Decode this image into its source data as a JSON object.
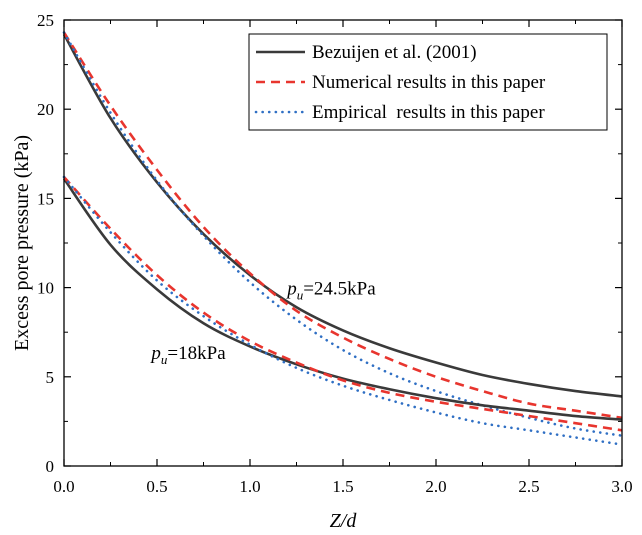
{
  "chart_data": {
    "type": "line",
    "title": "",
    "xlabel": "Z/d",
    "ylabel": "Excess pore pressure (kPa)",
    "xlim": [
      0,
      3
    ],
    "ylim": [
      0,
      25
    ],
    "xticks": [
      "0.0",
      "0.5",
      "1.0",
      "1.5",
      "2.0",
      "2.5",
      "3.0"
    ],
    "yticks": [
      "0",
      "5",
      "10",
      "15",
      "20",
      "25"
    ],
    "legend": [
      {
        "name": "Bezuijen et al. (2001)",
        "style": "solid",
        "color": "#3a3a3a"
      },
      {
        "name": "Numerical results in this paper",
        "style": "dashed",
        "color": "#e8352e"
      },
      {
        "name": "Empirical  results in this paper",
        "style": "dotted",
        "color": "#2f6fc4"
      }
    ],
    "annotations": [
      {
        "prefix": "p",
        "sub": "u",
        "text": "=24.5kPa",
        "x": 1.2,
        "y": 9.6
      },
      {
        "prefix": "p",
        "sub": "u",
        "text": "=18kPa",
        "x": 0.47,
        "y": 6.0
      }
    ],
    "series": [
      {
        "name": "Bezuijen et al. (2001)",
        "group": "pu=24.5kPa",
        "style": "solid",
        "color": "#3a3a3a",
        "x": [
          0,
          0.25,
          0.5,
          0.75,
          1.0,
          1.25,
          1.5,
          1.75,
          2.0,
          2.25,
          2.5,
          2.75,
          3.0
        ],
        "y": [
          24.2,
          19.5,
          15.9,
          13.0,
          10.7,
          8.9,
          7.6,
          6.6,
          5.8,
          5.1,
          4.6,
          4.2,
          3.9
        ]
      },
      {
        "name": "Numerical results in this paper",
        "group": "pu=24.5kPa",
        "style": "dashed",
        "color": "#e8352e",
        "x": [
          0,
          0.25,
          0.5,
          0.75,
          1.0,
          1.25,
          1.5,
          1.75,
          2.0,
          2.25,
          2.5,
          2.75,
          3.0
        ],
        "y": [
          24.3,
          20.2,
          16.6,
          13.4,
          10.8,
          8.7,
          7.2,
          6.0,
          5.0,
          4.2,
          3.5,
          3.1,
          2.7
        ]
      },
      {
        "name": "Empirical  results in this paper",
        "group": "pu=24.5kPa",
        "style": "dotted",
        "color": "#2f6fc4",
        "x": [
          0,
          0.25,
          0.5,
          0.75,
          1.0,
          1.25,
          1.5,
          1.75,
          2.0,
          2.25,
          2.5,
          2.75,
          3.0
        ],
        "y": [
          24.3,
          19.8,
          16.0,
          12.9,
          10.3,
          8.2,
          6.5,
          5.2,
          4.2,
          3.4,
          2.7,
          2.1,
          1.7
        ]
      },
      {
        "name": "Bezuijen et al. (2001)",
        "group": "pu=18kPa",
        "style": "solid",
        "color": "#3a3a3a",
        "x": [
          0,
          0.25,
          0.5,
          0.75,
          1.0,
          1.25,
          1.5,
          1.75,
          2.0,
          2.25,
          2.5,
          2.75,
          3.0
        ],
        "y": [
          16.1,
          12.4,
          9.9,
          8.0,
          6.7,
          5.7,
          4.9,
          4.3,
          3.8,
          3.4,
          3.1,
          2.8,
          2.6
        ]
      },
      {
        "name": "Numerical results in this paper",
        "group": "pu=18kPa",
        "style": "dashed",
        "color": "#e8352e",
        "x": [
          0,
          0.25,
          0.5,
          0.75,
          1.0,
          1.25,
          1.5,
          1.75,
          2.0,
          2.25,
          2.5,
          2.75,
          3.0
        ],
        "y": [
          16.2,
          13.3,
          10.7,
          8.6,
          7.0,
          5.8,
          4.8,
          4.1,
          3.6,
          3.2,
          2.8,
          2.4,
          2.0
        ]
      },
      {
        "name": "Empirical  results in this paper",
        "group": "pu=18kPa",
        "style": "dotted",
        "color": "#2f6fc4",
        "x": [
          0,
          0.25,
          0.5,
          0.75,
          1.0,
          1.25,
          1.5,
          1.75,
          2.0,
          2.25,
          2.5,
          2.75,
          3.0
        ],
        "y": [
          16.2,
          13.1,
          10.4,
          8.4,
          6.8,
          5.5,
          4.5,
          3.7,
          3.0,
          2.4,
          2.0,
          1.6,
          1.2
        ]
      }
    ]
  }
}
